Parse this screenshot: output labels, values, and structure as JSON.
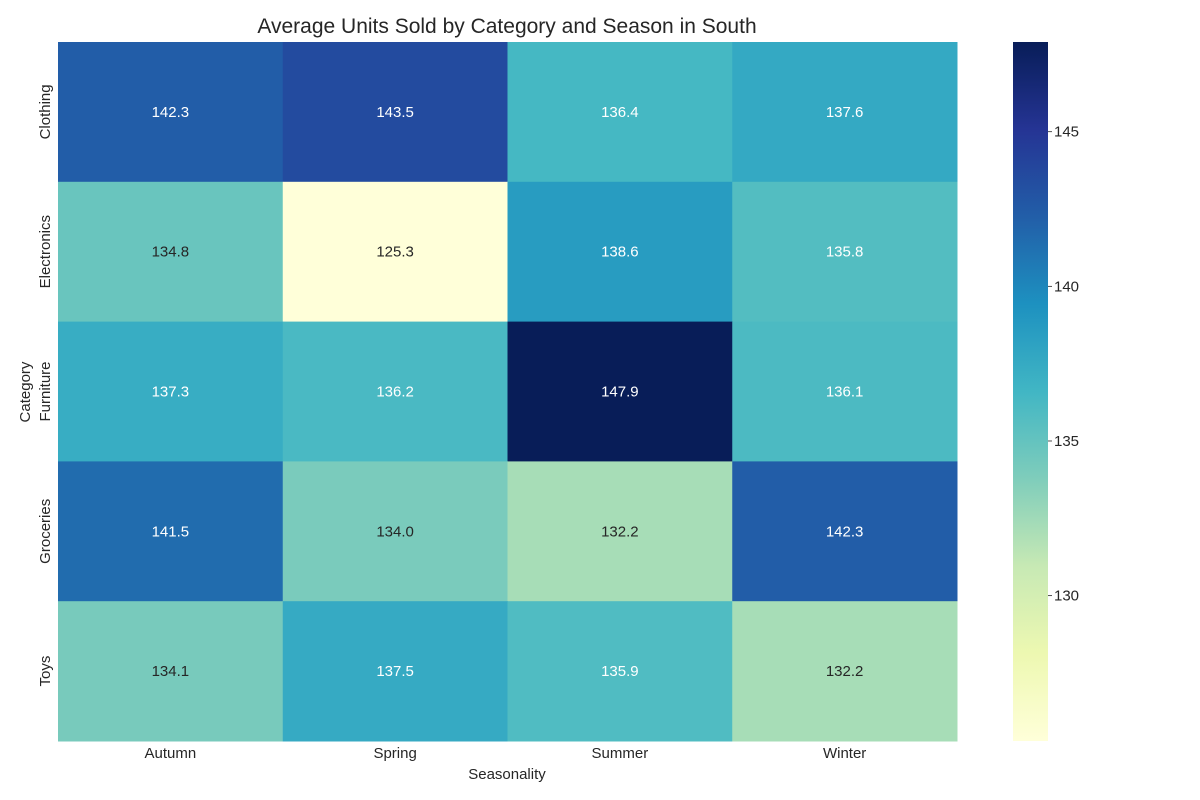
{
  "chart_data": {
    "type": "heatmap",
    "title": "Average Units Sold by Category and Season in South",
    "xlabel": "Seasonality",
    "ylabel": "Category",
    "x_categories": [
      "Autumn",
      "Spring",
      "Summer",
      "Winter"
    ],
    "y_categories": [
      "Clothing",
      "Electronics",
      "Furniture",
      "Groceries",
      "Toys"
    ],
    "values": [
      [
        142.3,
        143.5,
        136.4,
        137.6
      ],
      [
        134.8,
        125.3,
        138.6,
        135.8
      ],
      [
        137.3,
        136.2,
        147.9,
        136.1
      ],
      [
        141.5,
        134.0,
        132.2,
        142.3
      ],
      [
        134.1,
        137.5,
        135.9,
        132.2
      ]
    ],
    "colorbar": {
      "min": 125.3,
      "max": 147.9,
      "ticks": [
        130,
        135,
        140,
        145
      ],
      "colormap": "YlGnBu"
    },
    "grid": false,
    "legend": "colorbar-right"
  }
}
